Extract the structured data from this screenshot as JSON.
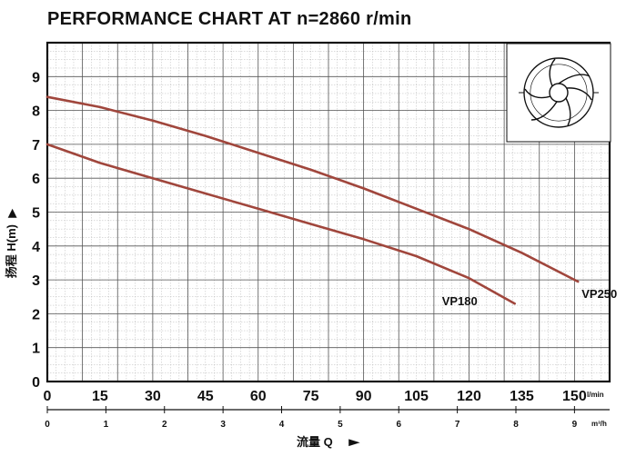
{
  "chart_data": {
    "type": "line",
    "title": "PERFORMANCE CHART AT n=2860 r/min",
    "xlabel": "流量 Q",
    "ylabel": "扬程 H(m)",
    "x_unit_primary": "l/min",
    "x_unit_secondary": "m³/h",
    "xlim": [
      0,
      160
    ],
    "ylim": [
      0,
      10
    ],
    "x_ticks_lpm": [
      "0",
      "15",
      "30",
      "45",
      "60",
      "75",
      "90",
      "105",
      "120",
      "135",
      "150"
    ],
    "x_ticks_m3h": [
      "0",
      "1",
      "2",
      "3",
      "4",
      "5",
      "6",
      "7",
      "8",
      "9"
    ],
    "y_ticks": [
      "0",
      "1",
      "2",
      "3",
      "4",
      "5",
      "6",
      "7",
      "8",
      "9"
    ],
    "grid": true,
    "series": [
      {
        "name": "VP250",
        "color": "#a0463c",
        "x": [
          0,
          15,
          30,
          45,
          60,
          75,
          90,
          105,
          120,
          135,
          151
        ],
        "y": [
          8.4,
          8.1,
          7.7,
          7.25,
          6.75,
          6.25,
          5.7,
          5.1,
          4.5,
          3.8,
          2.95
        ]
      },
      {
        "name": "VP180",
        "color": "#a0463c",
        "x": [
          0,
          15,
          30,
          45,
          60,
          75,
          90,
          105,
          120,
          133
        ],
        "y": [
          7.0,
          6.45,
          6.0,
          5.55,
          5.1,
          4.65,
          4.2,
          3.7,
          3.05,
          2.3
        ]
      }
    ]
  },
  "decor": {
    "impeller_icon": "pump-impeller-icon"
  }
}
